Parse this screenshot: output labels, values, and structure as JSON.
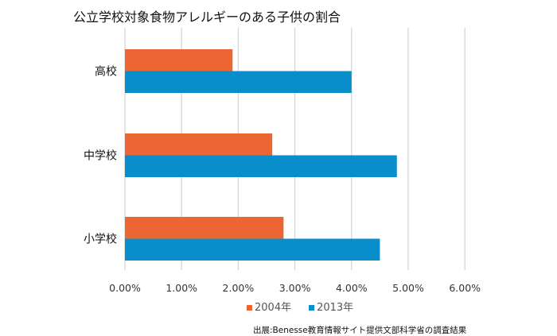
{
  "chart_data": {
    "type": "bar",
    "orientation": "horizontal",
    "title": "公立学校対象食物アレルギーのある子供の割合",
    "categories": [
      "高校",
      "中学校",
      "小学校"
    ],
    "series": [
      {
        "name": "2004年",
        "color": "#EC6634",
        "values": [
          1.9,
          2.6,
          2.8
        ]
      },
      {
        "name": "2013年",
        "color": "#0A8DCB",
        "values": [
          4.0,
          4.8,
          4.5
        ]
      }
    ],
    "xlim": [
      0,
      6
    ],
    "x_ticks": [
      "0.00%",
      "1.00%",
      "2.00%",
      "3.00%",
      "4.00%",
      "5.00%",
      "6.00%"
    ],
    "grid": true,
    "legend_position": "bottom",
    "source": "出展:Benesse教育情報サイト提供文部科学省の調査結果"
  }
}
